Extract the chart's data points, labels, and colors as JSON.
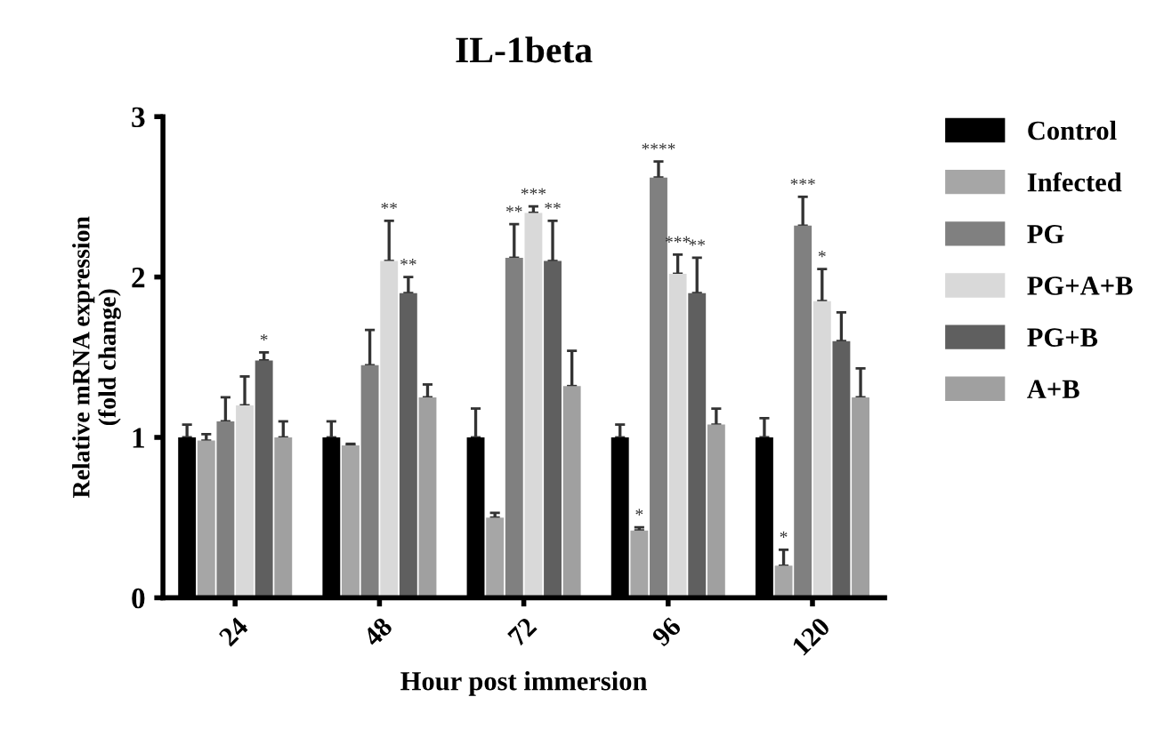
{
  "chart_data": {
    "type": "bar",
    "title": "IL-1beta",
    "xlabel": "Hour post immersion",
    "ylabel": "Relative mRNA expression\n(fold change)",
    "categories": [
      "24",
      "48",
      "72",
      "96",
      "120"
    ],
    "series": [
      {
        "name": "Control",
        "color": "#000000",
        "values": [
          1.0,
          1.0,
          1.0,
          1.0,
          1.0
        ],
        "errors": [
          [
            1.0,
            1.08
          ],
          [
            1.0,
            1.1
          ],
          [
            1.0,
            1.18
          ],
          [
            1.0,
            1.08
          ],
          [
            1.0,
            1.12
          ]
        ]
      },
      {
        "name": "Infected",
        "color": "#a6a6a6",
        "values": [
          0.98,
          0.95,
          0.5,
          0.42,
          0.2
        ],
        "errors": [
          [
            0.98,
            1.02
          ],
          [
            0.95,
            0.96
          ],
          [
            0.5,
            0.53
          ],
          [
            0.42,
            0.44
          ],
          [
            0.2,
            0.3
          ]
        ],
        "value_labels": [
          null,
          null,
          null,
          "*",
          "*"
        ]
      },
      {
        "name": "PG",
        "color": "#808080",
        "values": [
          1.1,
          1.45,
          2.12,
          2.62,
          2.32
        ],
        "errors": [
          [
            1.1,
            1.25
          ],
          [
            1.45,
            1.67
          ],
          [
            2.12,
            2.33
          ],
          [
            2.62,
            2.72
          ],
          [
            2.32,
            2.5
          ]
        ],
        "value_labels": [
          null,
          null,
          "**",
          "****",
          "***"
        ]
      },
      {
        "name": "PG+A+B",
        "color": "#d9d9d9",
        "values": [
          1.2,
          2.1,
          2.4,
          2.02,
          1.85
        ],
        "errors": [
          [
            1.2,
            1.38
          ],
          [
            2.1,
            2.35
          ],
          [
            2.4,
            2.44
          ],
          [
            2.02,
            2.14
          ],
          [
            1.85,
            2.05
          ]
        ],
        "value_labels": [
          null,
          "**",
          "***",
          "***",
          "*"
        ]
      },
      {
        "name": "PG+B",
        "color": "#5f5f5f",
        "values": [
          1.48,
          1.9,
          2.1,
          1.9,
          1.6
        ],
        "errors": [
          [
            1.48,
            1.53
          ],
          [
            1.9,
            2.0
          ],
          [
            2.1,
            2.35
          ],
          [
            1.9,
            2.12
          ],
          [
            1.6,
            1.78
          ]
        ],
        "value_labels": [
          "*",
          "**",
          "**",
          "**",
          null
        ]
      },
      {
        "name": "A+B",
        "color": "#a0a0a0",
        "values": [
          1.0,
          1.25,
          1.32,
          1.08,
          1.25
        ],
        "errors": [
          [
            1.0,
            1.1
          ],
          [
            1.25,
            1.33
          ],
          [
            1.32,
            1.54
          ],
          [
            1.08,
            1.18
          ],
          [
            1.25,
            1.43
          ]
        ]
      }
    ],
    "ylim": [
      0,
      3
    ],
    "yticks": [
      0,
      1,
      2,
      3
    ],
    "legend": "right"
  }
}
